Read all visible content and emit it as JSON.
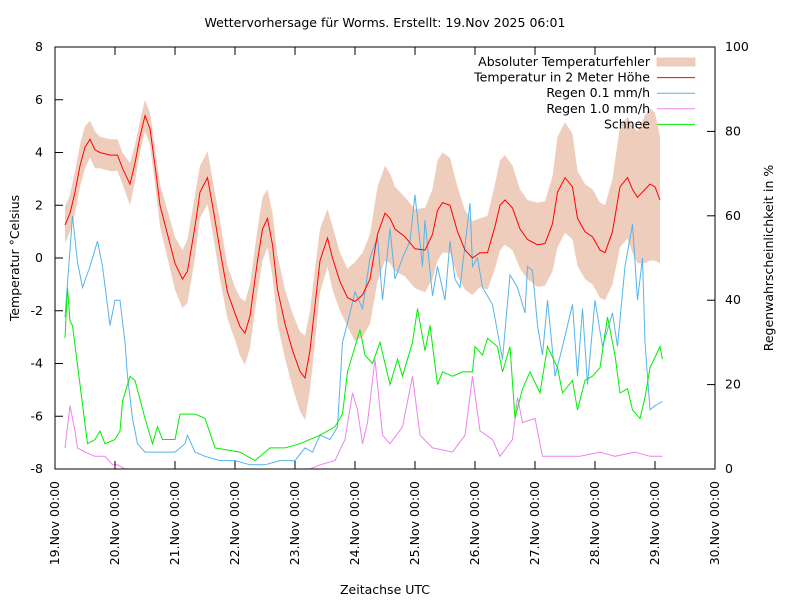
{
  "chart_data": {
    "type": "line",
    "title": "Wettervorhersage für Worms. Erstellt: 19.Nov 2025 06:01",
    "xlabel": "Zeitachse UTC",
    "ylabel": "Temperatur °Celsius",
    "y2label": "Regenwahrscheinlichkeit in %",
    "xlim": [
      "2025-11-19T00:00",
      "2025-11-30T00:00"
    ],
    "ylim": [
      -8,
      8
    ],
    "y2lim": [
      0,
      100
    ],
    "grid": false,
    "legend_placement": "top-right",
    "xticks": [
      "19.Nov 00:00",
      "20.Nov 00:00",
      "21.Nov 00:00",
      "22.Nov 00:00",
      "23.Nov 00:00",
      "24.Nov 00:00",
      "25.Nov 00:00",
      "26.Nov 00:00",
      "27.Nov 00:00",
      "28.Nov 00:00",
      "29.Nov 00:00",
      "30.Nov 00:00"
    ],
    "yticks": [
      "-8",
      "-6",
      "-4",
      "-2",
      "0",
      "2",
      "4",
      "6",
      "8"
    ],
    "y2ticks": [
      "0",
      "20",
      "40",
      "60",
      "80",
      "100"
    ],
    "legend": [
      "Absoluter Temperaturfehler",
      "Temperatur in 2 Meter Höhe",
      "Regen 0.1 mm/h",
      "Regen 1.0 mm/h",
      "Schnee"
    ],
    "colors": {
      "band": "#efcdbd",
      "temperature": "#ff0000",
      "rain01": "#56b4e9",
      "rain10": "#ee82ee",
      "snow": "#00ee00"
    },
    "temperature": [
      [
        "2025-11-19T04:00",
        1.25,
        0.7
      ],
      [
        "2025-11-19T06:00",
        1.7,
        0.7
      ],
      [
        "2025-11-19T08:00",
        2.5,
        0.8
      ],
      [
        "2025-11-19T10:00",
        3.5,
        0.8
      ],
      [
        "2025-11-19T12:00",
        4.2,
        0.8
      ],
      [
        "2025-11-19T14:00",
        4.5,
        0.7
      ],
      [
        "2025-11-19T16:00",
        4.1,
        0.7
      ],
      [
        "2025-11-19T18:00",
        4.0,
        0.6
      ],
      [
        "2025-11-19T22:00",
        3.9,
        0.6
      ],
      [
        "2025-11-20T01:00",
        3.9,
        0.6
      ],
      [
        "2025-11-20T03:00",
        3.4,
        0.6
      ],
      [
        "2025-11-20T06:00",
        2.8,
        0.8
      ],
      [
        "2025-11-20T08:00",
        3.6,
        0.7
      ],
      [
        "2025-11-20T10:00",
        4.6,
        0.6
      ],
      [
        "2025-11-20T12:00",
        5.4,
        0.6
      ],
      [
        "2025-11-20T14:00",
        4.9,
        0.6
      ],
      [
        "2025-11-20T16:00",
        3.5,
        0.7
      ],
      [
        "2025-11-20T18:00",
        2.0,
        0.8
      ],
      [
        "2025-11-20T21:00",
        0.9,
        0.9
      ],
      [
        "2025-11-21T00:00",
        -0.2,
        1.0
      ],
      [
        "2025-11-21T03:00",
        -0.8,
        1.1
      ],
      [
        "2025-11-21T05:00",
        -0.5,
        1.2
      ],
      [
        "2025-11-21T08:00",
        1.2,
        1.2
      ],
      [
        "2025-11-21T10:00",
        2.5,
        1.0
      ],
      [
        "2025-11-21T13:00",
        3.05,
        1.0
      ],
      [
        "2025-11-21T15:00",
        2.0,
        1.0
      ],
      [
        "2025-11-21T18:00",
        0.3,
        1.1
      ],
      [
        "2025-11-21T21:00",
        -1.3,
        1.0
      ],
      [
        "2025-11-22T00:00",
        -2.1,
        1.0
      ],
      [
        "2025-11-22T02:00",
        -2.6,
        1.1
      ],
      [
        "2025-11-22T04:00",
        -2.85,
        1.2
      ],
      [
        "2025-11-22T06:00",
        -2.2,
        1.2
      ],
      [
        "2025-11-22T09:00",
        -0.1,
        1.2
      ],
      [
        "2025-11-22T11:00",
        1.1,
        1.2
      ],
      [
        "2025-11-22T13:00",
        1.5,
        1.1
      ],
      [
        "2025-11-22T15:00",
        0.5,
        1.2
      ],
      [
        "2025-11-22T17:00",
        -1.2,
        1.3
      ],
      [
        "2025-11-22T20:00",
        -2.5,
        1.3
      ],
      [
        "2025-11-22T23:00",
        -3.5,
        1.4
      ],
      [
        "2025-11-23T02:00",
        -4.3,
        1.5
      ],
      [
        "2025-11-23T04:00",
        -4.55,
        1.6
      ],
      [
        "2025-11-23T06:00",
        -3.5,
        1.5
      ],
      [
        "2025-11-23T08:00",
        -1.8,
        1.4
      ],
      [
        "2025-11-23T10:00",
        -0.1,
        1.2
      ],
      [
        "2025-11-23T13:00",
        0.76,
        1.1
      ],
      [
        "2025-11-23T15:00",
        0.0,
        1.2
      ],
      [
        "2025-11-23T18:00",
        -0.9,
        1.1
      ],
      [
        "2025-11-23T21:00",
        -1.5,
        1.1
      ],
      [
        "2025-11-24T00:00",
        -1.65,
        1.5
      ],
      [
        "2025-11-24T03:00",
        -1.4,
        1.6
      ],
      [
        "2025-11-24T06:00",
        -0.8,
        1.7
      ],
      [
        "2025-11-24T09:00",
        0.9,
        1.8
      ],
      [
        "2025-11-24T12:00",
        1.7,
        1.8
      ],
      [
        "2025-11-24T14:00",
        1.5,
        1.7
      ],
      [
        "2025-11-24T16:00",
        1.1,
        1.6
      ],
      [
        "2025-11-24T20:00",
        0.8,
        1.5
      ],
      [
        "2025-11-25T00:00",
        0.35,
        1.5
      ],
      [
        "2025-11-25T04:00",
        0.3,
        1.6
      ],
      [
        "2025-11-25T07:00",
        0.9,
        1.7
      ],
      [
        "2025-11-25T09:00",
        1.8,
        1.9
      ],
      [
        "2025-11-25T11:00",
        2.1,
        1.9
      ],
      [
        "2025-11-25T14:00",
        2.0,
        1.8
      ],
      [
        "2025-11-25T17:00",
        1.0,
        1.7
      ],
      [
        "2025-11-25T20:00",
        0.3,
        1.5
      ],
      [
        "2025-11-25T23:00",
        0.0,
        1.4
      ],
      [
        "2025-11-26T02:00",
        0.2,
        1.3
      ],
      [
        "2025-11-26T05:00",
        0.2,
        1.4
      ],
      [
        "2025-11-26T08:00",
        1.2,
        1.6
      ],
      [
        "2025-11-26T10:00",
        2.0,
        1.7
      ],
      [
        "2025-11-26T12:00",
        2.2,
        1.7
      ],
      [
        "2025-11-26T15:00",
        1.9,
        1.6
      ],
      [
        "2025-11-26T18:00",
        1.1,
        1.5
      ],
      [
        "2025-11-26T21:00",
        0.7,
        1.5
      ],
      [
        "2025-11-27T01:00",
        0.5,
        1.6
      ],
      [
        "2025-11-27T04:00",
        0.55,
        1.6
      ],
      [
        "2025-11-27T07:00",
        1.3,
        1.8
      ],
      [
        "2025-11-27T09:00",
        2.5,
        2.1
      ],
      [
        "2025-11-27T12:00",
        3.05,
        2.1
      ],
      [
        "2025-11-27T15:00",
        2.7,
        2.0
      ],
      [
        "2025-11-27T17:00",
        1.5,
        1.8
      ],
      [
        "2025-11-27T20:00",
        1.0,
        1.8
      ],
      [
        "2025-11-27T23:00",
        0.8,
        1.8
      ],
      [
        "2025-11-28T02:00",
        0.3,
        1.8
      ],
      [
        "2025-11-28T04:00",
        0.2,
        1.8
      ],
      [
        "2025-11-28T07:00",
        1.0,
        2.0
      ],
      [
        "2025-11-28T10:00",
        2.7,
        2.3
      ],
      [
        "2025-11-28T13:00",
        3.05,
        2.3
      ],
      [
        "2025-11-28T15:00",
        2.6,
        2.4
      ],
      [
        "2025-11-28T17:00",
        2.3,
        2.5
      ],
      [
        "2025-11-28T20:00",
        2.6,
        2.8
      ],
      [
        "2025-11-28T22:00",
        2.8,
        2.9
      ],
      [
        "2025-11-29T00:00",
        2.7,
        2.8
      ],
      [
        "2025-11-29T02:00",
        2.2,
        2.4
      ]
    ],
    "rain01": [
      [
        "2025-11-19T04:00",
        36
      ],
      [
        "2025-11-19T07:00",
        60
      ],
      [
        "2025-11-19T09:00",
        49
      ],
      [
        "2025-11-19T11:00",
        43
      ],
      [
        "2025-11-19T14:00",
        48
      ],
      [
        "2025-11-19T17:00",
        54
      ],
      [
        "2025-11-19T19:00",
        48
      ],
      [
        "2025-11-19T22:00",
        34
      ],
      [
        "2025-11-20T00:00",
        40
      ],
      [
        "2025-11-20T02:00",
        40
      ],
      [
        "2025-11-20T04:00",
        30
      ],
      [
        "2025-11-20T05:00",
        22
      ],
      [
        "2025-11-20T07:00",
        12
      ],
      [
        "2025-11-20T09:00",
        6
      ],
      [
        "2025-11-20T12:00",
        4
      ],
      [
        "2025-11-20T18:00",
        4
      ],
      [
        "2025-11-21T00:00",
        4
      ],
      [
        "2025-11-21T04:00",
        6
      ],
      [
        "2025-11-21T05:00",
        8
      ],
      [
        "2025-11-21T08:00",
        4
      ],
      [
        "2025-11-21T12:00",
        3
      ],
      [
        "2025-11-21T18:00",
        2
      ],
      [
        "2025-11-22T00:00",
        2
      ],
      [
        "2025-11-22T06:00",
        1
      ],
      [
        "2025-11-22T12:00",
        1
      ],
      [
        "2025-11-22T18:00",
        2
      ],
      [
        "2025-11-23T00:00",
        2
      ],
      [
        "2025-11-23T04:00",
        5
      ],
      [
        "2025-11-23T07:00",
        4
      ],
      [
        "2025-11-23T10:00",
        8
      ],
      [
        "2025-11-23T14:00",
        7
      ],
      [
        "2025-11-23T17:00",
        10
      ],
      [
        "2025-11-23T19:00",
        30
      ],
      [
        "2025-11-23T22:00",
        37
      ],
      [
        "2025-11-24T00:00",
        42
      ],
      [
        "2025-11-24T03:00",
        38
      ],
      [
        "2025-11-24T06:00",
        50
      ],
      [
        "2025-11-24T09:00",
        55
      ],
      [
        "2025-11-24T11:00",
        40
      ],
      [
        "2025-11-24T14:00",
        57
      ],
      [
        "2025-11-24T16:00",
        45
      ],
      [
        "2025-11-24T19:00",
        50
      ],
      [
        "2025-11-24T22:00",
        54
      ],
      [
        "2025-11-25T00:00",
        65
      ],
      [
        "2025-11-25T03:00",
        48
      ],
      [
        "2025-11-25T04:00",
        59
      ],
      [
        "2025-11-25T07:00",
        41
      ],
      [
        "2025-11-25T09:00",
        48
      ],
      [
        "2025-11-25T12:00",
        40
      ],
      [
        "2025-11-25T14:00",
        54
      ],
      [
        "2025-11-25T16:00",
        45
      ],
      [
        "2025-11-25T18:00",
        43
      ],
      [
        "2025-11-25T22:00",
        63
      ],
      [
        "2025-11-25T23:00",
        48
      ],
      [
        "2025-11-26T01:00",
        50
      ],
      [
        "2025-11-26T03:00",
        43
      ],
      [
        "2025-11-26T07:00",
        39
      ],
      [
        "2025-11-26T11:00",
        26
      ],
      [
        "2025-11-26T14:00",
        46
      ],
      [
        "2025-11-26T17:00",
        43
      ],
      [
        "2025-11-26T20:00",
        37
      ],
      [
        "2025-11-26T21:00",
        48
      ],
      [
        "2025-11-26T23:00",
        47
      ],
      [
        "2025-11-27T01:00",
        34
      ],
      [
        "2025-11-27T03:00",
        27
      ],
      [
        "2025-11-27T05:00",
        40
      ],
      [
        "2025-11-27T08:00",
        22
      ],
      [
        "2025-11-27T11:00",
        29
      ],
      [
        "2025-11-27T15:00",
        39
      ],
      [
        "2025-11-27T17:00",
        22
      ],
      [
        "2025-11-27T19:00",
        38
      ],
      [
        "2025-11-27T21:00",
        20
      ],
      [
        "2025-11-28T00:00",
        40
      ],
      [
        "2025-11-28T03:00",
        29
      ],
      [
        "2025-11-28T07:00",
        37
      ],
      [
        "2025-11-28T09:00",
        29
      ],
      [
        "2025-11-28T12:00",
        48
      ],
      [
        "2025-11-28T15:00",
        58
      ],
      [
        "2025-11-28T17:00",
        40
      ],
      [
        "2025-11-28T19:00",
        50
      ],
      [
        "2025-11-28T20:00",
        30
      ],
      [
        "2025-11-28T22:00",
        14
      ],
      [
        "2025-11-29T00:00",
        15
      ],
      [
        "2025-11-29T03:00",
        16
      ]
    ],
    "rain10": [
      [
        "2025-11-19T04:00",
        5
      ],
      [
        "2025-11-19T06:00",
        15
      ],
      [
        "2025-11-19T08:00",
        9
      ],
      [
        "2025-11-19T09:00",
        5
      ],
      [
        "2025-11-19T12:00",
        4
      ],
      [
        "2025-11-19T16:00",
        3
      ],
      [
        "2025-11-19T20:00",
        3
      ],
      [
        "2025-11-19T23:00",
        1
      ],
      [
        "2025-11-20T01:00",
        1
      ],
      [
        "2025-11-20T04:00",
        0
      ],
      [
        "2025-11-23T06:00",
        0
      ],
      [
        "2025-11-23T10:00",
        1
      ],
      [
        "2025-11-23T16:00",
        2
      ],
      [
        "2025-11-23T20:00",
        7
      ],
      [
        "2025-11-23T23:00",
        18
      ],
      [
        "2025-11-24T01:00",
        14
      ],
      [
        "2025-11-24T03:00",
        6
      ],
      [
        "2025-11-24T05:00",
        11
      ],
      [
        "2025-11-24T08:00",
        26
      ],
      [
        "2025-11-24T11:00",
        8
      ],
      [
        "2025-11-24T14:00",
        6
      ],
      [
        "2025-11-24T19:00",
        10
      ],
      [
        "2025-11-24T23:00",
        22
      ],
      [
        "2025-11-25T02:00",
        8
      ],
      [
        "2025-11-25T07:00",
        5
      ],
      [
        "2025-11-25T15:00",
        4
      ],
      [
        "2025-11-25T20:00",
        8
      ],
      [
        "2025-11-25T23:00",
        22
      ],
      [
        "2025-11-26T02:00",
        9
      ],
      [
        "2025-11-26T07:00",
        7
      ],
      [
        "2025-11-26T10:00",
        3
      ],
      [
        "2025-11-26T15:00",
        7
      ],
      [
        "2025-11-26T17:00",
        17
      ],
      [
        "2025-11-26T19:00",
        11
      ],
      [
        "2025-11-27T00:00",
        12
      ],
      [
        "2025-11-27T03:00",
        3
      ],
      [
        "2025-11-27T10:00",
        3
      ],
      [
        "2025-11-27T18:00",
        3
      ],
      [
        "2025-11-28T02:00",
        4
      ],
      [
        "2025-11-28T08:00",
        3
      ],
      [
        "2025-11-28T16:00",
        4
      ],
      [
        "2025-11-28T22:00",
        3
      ],
      [
        "2025-11-29T03:00",
        3
      ]
    ],
    "snow": [
      [
        "2025-11-19T04:00",
        31
      ],
      [
        "2025-11-19T05:00",
        43
      ],
      [
        "2025-11-19T06:00",
        35
      ],
      [
        "2025-11-19T07:00",
        34
      ],
      [
        "2025-11-19T10:00",
        20
      ],
      [
        "2025-11-19T13:00",
        6
      ],
      [
        "2025-11-19T16:00",
        7
      ],
      [
        "2025-11-19T18:00",
        9
      ],
      [
        "2025-11-19T20:00",
        6
      ],
      [
        "2025-11-20T00:00",
        7
      ],
      [
        "2025-11-20T02:00",
        9
      ],
      [
        "2025-11-20T03:00",
        16
      ],
      [
        "2025-11-20T06:00",
        22
      ],
      [
        "2025-11-20T08:00",
        21
      ],
      [
        "2025-11-20T12:00",
        12
      ],
      [
        "2025-11-20T15:00",
        6
      ],
      [
        "2025-11-20T17:00",
        10
      ],
      [
        "2025-11-20T19:00",
        7
      ],
      [
        "2025-11-21T00:00",
        7
      ],
      [
        "2025-11-21T02:00",
        13
      ],
      [
        "2025-11-21T08:00",
        13
      ],
      [
        "2025-11-21T12:00",
        12
      ],
      [
        "2025-11-21T16:00",
        5
      ],
      [
        "2025-11-22T02:00",
        4
      ],
      [
        "2025-11-22T08:00",
        2
      ],
      [
        "2025-11-22T14:00",
        5
      ],
      [
        "2025-11-22T20:00",
        5
      ],
      [
        "2025-11-23T02:00",
        6
      ],
      [
        "2025-11-23T10:00",
        8
      ],
      [
        "2025-11-23T16:00",
        10
      ],
      [
        "2025-11-23T19:00",
        13
      ],
      [
        "2025-11-23T21:00",
        23
      ],
      [
        "2025-11-23T23:00",
        27
      ],
      [
        "2025-11-24T02:00",
        33
      ],
      [
        "2025-11-24T04:00",
        27
      ],
      [
        "2025-11-24T07:00",
        25
      ],
      [
        "2025-11-24T10:00",
        30
      ],
      [
        "2025-11-24T14:00",
        20
      ],
      [
        "2025-11-24T17:00",
        26
      ],
      [
        "2025-11-24T19:00",
        22
      ],
      [
        "2025-11-24T23:00",
        30
      ],
      [
        "2025-11-25T01:00",
        38
      ],
      [
        "2025-11-25T04:00",
        28
      ],
      [
        "2025-11-25T06:00",
        34
      ],
      [
        "2025-11-25T09:00",
        20
      ],
      [
        "2025-11-25T11:00",
        23
      ],
      [
        "2025-11-25T15:00",
        22
      ],
      [
        "2025-11-25T19:00",
        23
      ],
      [
        "2025-11-25T23:00",
        23
      ],
      [
        "2025-11-26T00:00",
        29
      ],
      [
        "2025-11-26T03:00",
        27
      ],
      [
        "2025-11-26T05:00",
        31
      ],
      [
        "2025-11-26T09:00",
        29
      ],
      [
        "2025-11-26T11:00",
        23
      ],
      [
        "2025-11-26T14:00",
        29
      ],
      [
        "2025-11-26T16:00",
        12
      ],
      [
        "2025-11-26T19:00",
        19
      ],
      [
        "2025-11-26T22:00",
        23
      ],
      [
        "2025-11-27T02:00",
        18
      ],
      [
        "2025-11-27T05:00",
        29
      ],
      [
        "2025-11-27T09:00",
        24
      ],
      [
        "2025-11-27T11:00",
        18
      ],
      [
        "2025-11-27T15:00",
        21
      ],
      [
        "2025-11-27T17:00",
        14
      ],
      [
        "2025-11-27T20:00",
        21
      ],
      [
        "2025-11-27T23:00",
        22
      ],
      [
        "2025-11-28T02:00",
        24
      ],
      [
        "2025-11-28T05:00",
        36
      ],
      [
        "2025-11-28T08:00",
        27
      ],
      [
        "2025-11-28T10:00",
        18
      ],
      [
        "2025-11-28T13:00",
        19
      ],
      [
        "2025-11-28T15:00",
        14
      ],
      [
        "2025-11-28T18:00",
        12
      ],
      [
        "2025-11-28T20:00",
        17
      ],
      [
        "2025-11-28T22:00",
        24
      ],
      [
        "2025-11-29T02:00",
        29
      ],
      [
        "2025-11-29T03:00",
        26
      ]
    ]
  }
}
